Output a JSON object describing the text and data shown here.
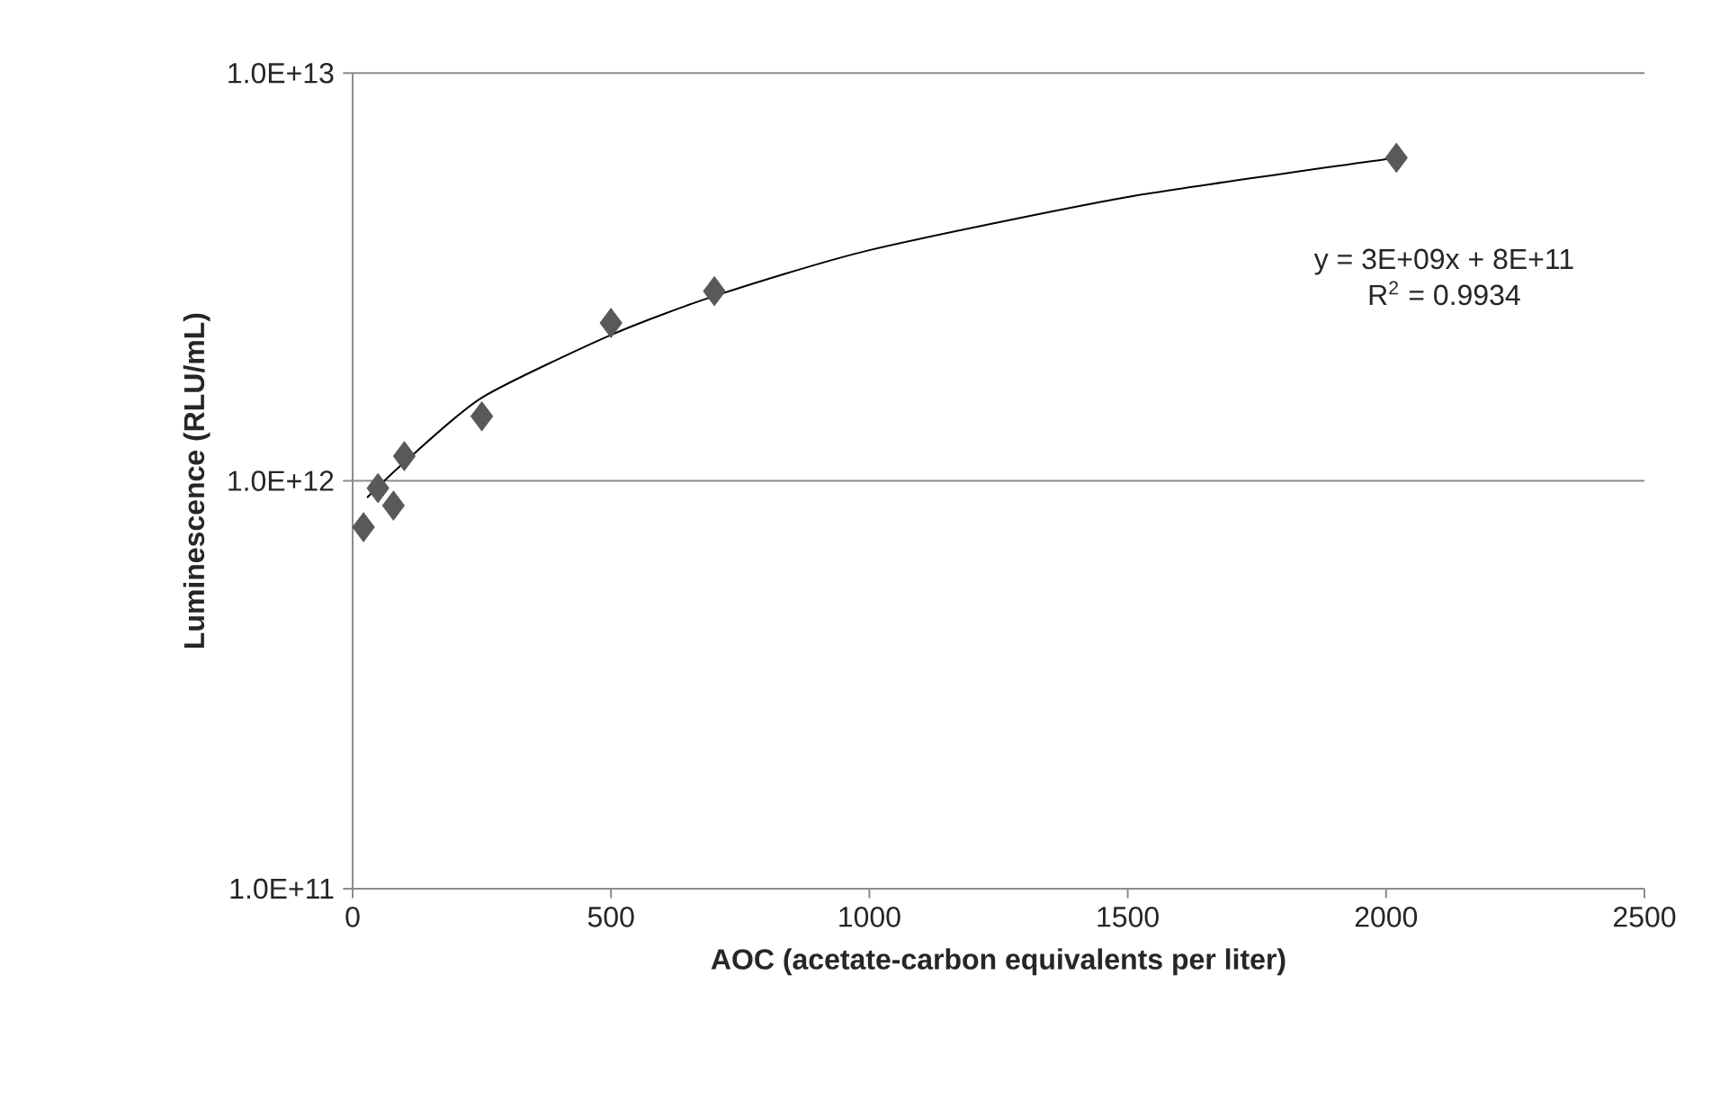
{
  "chart_data": {
    "type": "scatter",
    "xlabel": "AOC (acetate-carbon equivalents per liter)",
    "ylabel": "Luminescence (RLU/mL)",
    "log": "y",
    "grid": "y",
    "marker": "diamond",
    "xlim": [
      0,
      2500
    ],
    "xticks": [
      0,
      500,
      1000,
      1500,
      2000,
      2500
    ],
    "ylim": [
      100000000000.0,
      10000000000000.0
    ],
    "yticks": [
      {
        "value": 100000000000.0,
        "label": "1.0E+11"
      },
      {
        "value": 1000000000000.0,
        "label": "1.0E+12"
      },
      {
        "value": 10000000000000.0,
        "label": "1.0E+13"
      }
    ],
    "series": [
      {
        "color": "#595959",
        "x": [
          21,
          49,
          79,
          100,
          250,
          500,
          700,
          2020
        ],
        "values": [
          770000000000.0,
          960000000000.0,
          870000000000.0,
          1150000000000.0,
          1440000000000.0,
          2440000000000.0,
          2920000000000.0,
          6200000000000.0
        ]
      },
      {
        "type": "line",
        "color": "#000000",
        "marker": "none",
        "x": [
          28,
          100,
          250,
          500,
          700,
          1000,
          1500,
          2020
        ],
        "values": [
          910000000000.0,
          1110000000000.0,
          1600000000000.0,
          2280000000000.0,
          2840000000000.0,
          3680000000000.0,
          4970000000000.0,
          6200000000000.0
        ]
      }
    ],
    "annotations": [
      "y = 3E+09x + 8E+11",
      "R$^{2}$ = 0.9934"
    ]
  }
}
